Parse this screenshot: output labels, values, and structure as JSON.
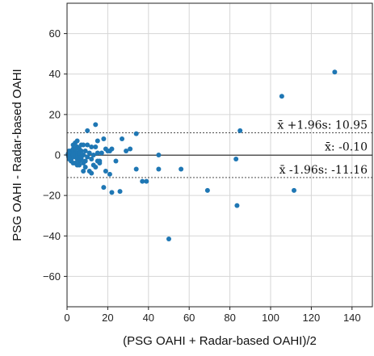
{
  "chart_data": {
    "type": "scatter",
    "xlabel": "(PSG OAHI + Radar-based OAHI)/2",
    "ylabel": "PSG OAHI - Radar-based OAHI",
    "xlim": [
      0,
      150
    ],
    "ylim": [
      -75,
      75
    ],
    "xticks": [
      0,
      20,
      40,
      60,
      80,
      100,
      120,
      140
    ],
    "yticks": [
      -60,
      -40,
      -20,
      0,
      20,
      40,
      60
    ],
    "grid": true,
    "point_color": "#1f77b4",
    "mean_line": {
      "value": -0.1,
      "label": "x̄: -0.10",
      "color": "#555555"
    },
    "upper_loa": {
      "value": 10.95,
      "label": "x̄ +1.96s: 10.95",
      "color": "#333333"
    },
    "lower_loa": {
      "value": -11.16,
      "label": "x̄ -1.96s: -11.16",
      "color": "#333333"
    },
    "points": [
      [
        131.5,
        41
      ],
      [
        105.5,
        29
      ],
      [
        85,
        12
      ],
      [
        83,
        -2
      ],
      [
        83.5,
        -25
      ],
      [
        111.5,
        -17.5
      ],
      [
        69,
        -17.5
      ],
      [
        56,
        -7
      ],
      [
        50,
        -41.5
      ],
      [
        45,
        0
      ],
      [
        45,
        -7
      ],
      [
        39,
        -13
      ],
      [
        37,
        -13
      ],
      [
        34,
        10.5
      ],
      [
        34,
        -7
      ],
      [
        31,
        3
      ],
      [
        29,
        2
      ],
      [
        27,
        8
      ],
      [
        26,
        -18
      ],
      [
        24,
        -3
      ],
      [
        22,
        -18.5
      ],
      [
        21,
        -9.5
      ],
      [
        19,
        3
      ],
      [
        18,
        8
      ],
      [
        18,
        -16
      ],
      [
        19,
        -8
      ],
      [
        17,
        1
      ],
      [
        16,
        -3
      ],
      [
        15,
        7
      ],
      [
        15,
        -3
      ],
      [
        14,
        15
      ],
      [
        14,
        4
      ],
      [
        13,
        0
      ],
      [
        13,
        -5
      ],
      [
        12,
        -2
      ],
      [
        11,
        -8
      ],
      [
        10,
        12
      ],
      [
        10,
        5
      ],
      [
        9,
        2
      ],
      [
        9,
        -3
      ],
      [
        9,
        -6
      ],
      [
        8,
        0
      ],
      [
        8,
        5
      ],
      [
        8,
        -4
      ],
      [
        7,
        2
      ],
      [
        7,
        -2
      ],
      [
        6,
        3
      ],
      [
        6,
        -1
      ],
      [
        6,
        -3
      ],
      [
        5,
        1
      ],
      [
        5,
        -2
      ],
      [
        5,
        4
      ],
      [
        4,
        0
      ],
      [
        4,
        -1
      ],
      [
        4,
        2
      ],
      [
        4,
        6
      ],
      [
        3,
        1
      ],
      [
        3,
        -1
      ],
      [
        3,
        3
      ],
      [
        3,
        -4
      ],
      [
        2,
        0
      ],
      [
        2,
        1
      ],
      [
        2,
        -1
      ],
      [
        2,
        2
      ],
      [
        2,
        -2
      ],
      [
        1.5,
        0
      ],
      [
        1,
        0
      ],
      [
        1,
        1
      ],
      [
        1,
        -1
      ],
      [
        0.5,
        0
      ],
      [
        0.5,
        0.5
      ],
      [
        7,
        5
      ],
      [
        6,
        -5
      ],
      [
        11,
        1
      ],
      [
        12,
        4
      ],
      [
        15,
        1
      ],
      [
        10,
        -1
      ],
      [
        8,
        -8
      ],
      [
        5,
        7
      ],
      [
        3,
        5
      ],
      [
        21,
        2
      ],
      [
        22,
        3
      ],
      [
        20,
        2
      ],
      [
        16,
        -4
      ],
      [
        14,
        -6
      ],
      [
        12,
        -9
      ],
      [
        4,
        -4
      ],
      [
        2,
        -3
      ],
      [
        1,
        2
      ],
      [
        1,
        -2
      ],
      [
        0.8,
        1
      ],
      [
        0.8,
        -1
      ],
      [
        3,
        0
      ],
      [
        4,
        3
      ],
      [
        5,
        -5
      ],
      [
        6,
        1
      ],
      [
        7,
        -1
      ]
    ]
  }
}
